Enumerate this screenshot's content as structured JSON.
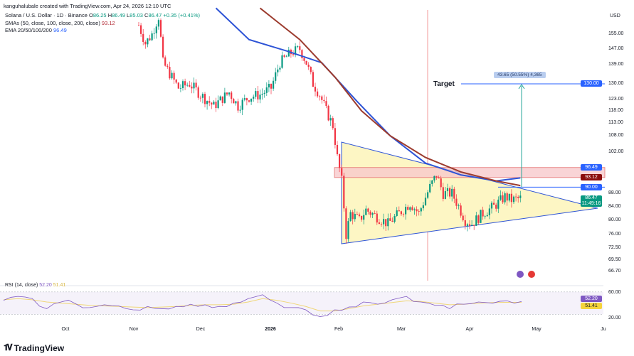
{
  "header": {
    "credit": "kanguhalubale created with TradingView.com, Apr 24, 2026 12:10 UTC",
    "symbol": "Solana / U.S. Dollar · 1D · Binance",
    "open_label": "O",
    "open": "86.25",
    "high_label": "H",
    "high": "86.49",
    "low_label": "L",
    "low": "85.03",
    "close_label": "C",
    "close": "86.47",
    "change": "+0.35 (+0.41%)",
    "sma_label": "SMAs (50, close, 100, close, 200, close)",
    "sma_value": "93.12",
    "ema_label": "EMA 20/50/100/200",
    "ema_value": "96.49"
  },
  "currency": "USD",
  "colors": {
    "up": "#089981",
    "down": "#f23645",
    "sma": "#9c3b2e",
    "ema": "#2e54d6",
    "rsi": "#7e57c2",
    "rsi_ma": "#f0d77a",
    "triangle_fill": "#fdf6c4",
    "zone": "#f7c9cc"
  },
  "annotations": {
    "target_label": "Target",
    "measure": "43.65 (50.55%) 4,365"
  },
  "price_tags": [
    {
      "value": "96.49",
      "color": "#2962ff"
    },
    {
      "value": "93.12",
      "color": "#8b0d0d"
    },
    {
      "value": "90.00",
      "color": "#2962ff"
    },
    {
      "value": "86.47",
      "color": "#089981",
      "countdown": "11:49:16"
    },
    {
      "value": "130.00",
      "color": "#2962ff"
    }
  ],
  "rsi": {
    "label": "RSI (14, close)",
    "value": "52.20",
    "ma_value": "51.41",
    "ticks": [
      "60.00",
      "20.00"
    ]
  },
  "brand": "TradingView",
  "chart_data": {
    "type": "candlestick",
    "title": "Solana / U.S. Dollar · 1D · Binance",
    "y_ticks": [
      155,
      147,
      139,
      130,
      123,
      118,
      113,
      108,
      102,
      88,
      84,
      80,
      76,
      72.5,
      69.5,
      66.7
    ],
    "x_ticks": [
      "Oct",
      "Nov",
      "Dec",
      "2026",
      "Feb",
      "Mar",
      "Apr",
      "May",
      "Ju"
    ],
    "price_path_day_close": [
      [
        0,
        160
      ],
      [
        3,
        150
      ],
      [
        6,
        155
      ],
      [
        9,
        165
      ],
      [
        11,
        140
      ],
      [
        15,
        133
      ],
      [
        18,
        128
      ],
      [
        23,
        130
      ],
      [
        28,
        125
      ],
      [
        34,
        120
      ],
      [
        41,
        126
      ],
      [
        45,
        120
      ],
      [
        50,
        124
      ],
      [
        55,
        125
      ],
      [
        60,
        128
      ],
      [
        64,
        140
      ],
      [
        69,
        145
      ],
      [
        73,
        147
      ],
      [
        76,
        140
      ],
      [
        79,
        130
      ],
      [
        82,
        125
      ],
      [
        85,
        118
      ],
      [
        88,
        112
      ],
      [
        90,
        100
      ],
      [
        92,
        92
      ],
      [
        94,
        76
      ],
      [
        96,
        82
      ],
      [
        100,
        80
      ],
      [
        103,
        83
      ],
      [
        108,
        81
      ],
      [
        113,
        79
      ],
      [
        118,
        82
      ],
      [
        123,
        85
      ],
      [
        127,
        82
      ],
      [
        132,
        90
      ],
      [
        135,
        94
      ],
      [
        138,
        88
      ],
      [
        142,
        88
      ],
      [
        145,
        84
      ],
      [
        148,
        80
      ],
      [
        151,
        79
      ],
      [
        156,
        82
      ],
      [
        161,
        84
      ],
      [
        166,
        87
      ],
      [
        169,
        86
      ],
      [
        173,
        86.47
      ]
    ],
    "sma_200": [
      [
        55,
        170
      ],
      [
        73,
        152
      ],
      [
        89,
        133
      ],
      [
        101,
        118
      ],
      [
        114,
        108
      ],
      [
        130,
        100
      ],
      [
        146,
        95
      ],
      [
        162,
        92
      ],
      [
        173,
        90.5
      ]
    ],
    "ema_200": [
      [
        35,
        170
      ],
      [
        50,
        152
      ],
      [
        67,
        146
      ],
      [
        83,
        140
      ],
      [
        99,
        122
      ],
      [
        114,
        108
      ],
      [
        130,
        98
      ],
      [
        146,
        94
      ],
      [
        162,
        92
      ],
      [
        173,
        93
      ]
    ],
    "rsi_series": [
      55,
      62,
      58,
      40,
      52,
      49,
      42,
      47,
      45,
      38,
      44,
      40,
      44,
      48,
      47,
      44,
      50,
      58,
      65,
      50,
      42,
      38,
      26,
      38,
      43,
      52,
      48,
      56,
      62,
      52,
      46,
      40,
      48,
      52,
      50,
      54,
      53
    ],
    "rsi_ma_series": [
      56,
      58,
      56,
      52,
      50,
      48,
      46,
      45,
      44,
      43,
      42,
      43,
      44,
      46,
      47,
      47,
      48,
      52,
      58,
      55,
      50,
      44,
      36,
      36,
      40,
      45,
      48,
      51,
      54,
      53,
      50,
      47,
      48,
      50,
      51,
      51.4,
      51.41
    ]
  }
}
